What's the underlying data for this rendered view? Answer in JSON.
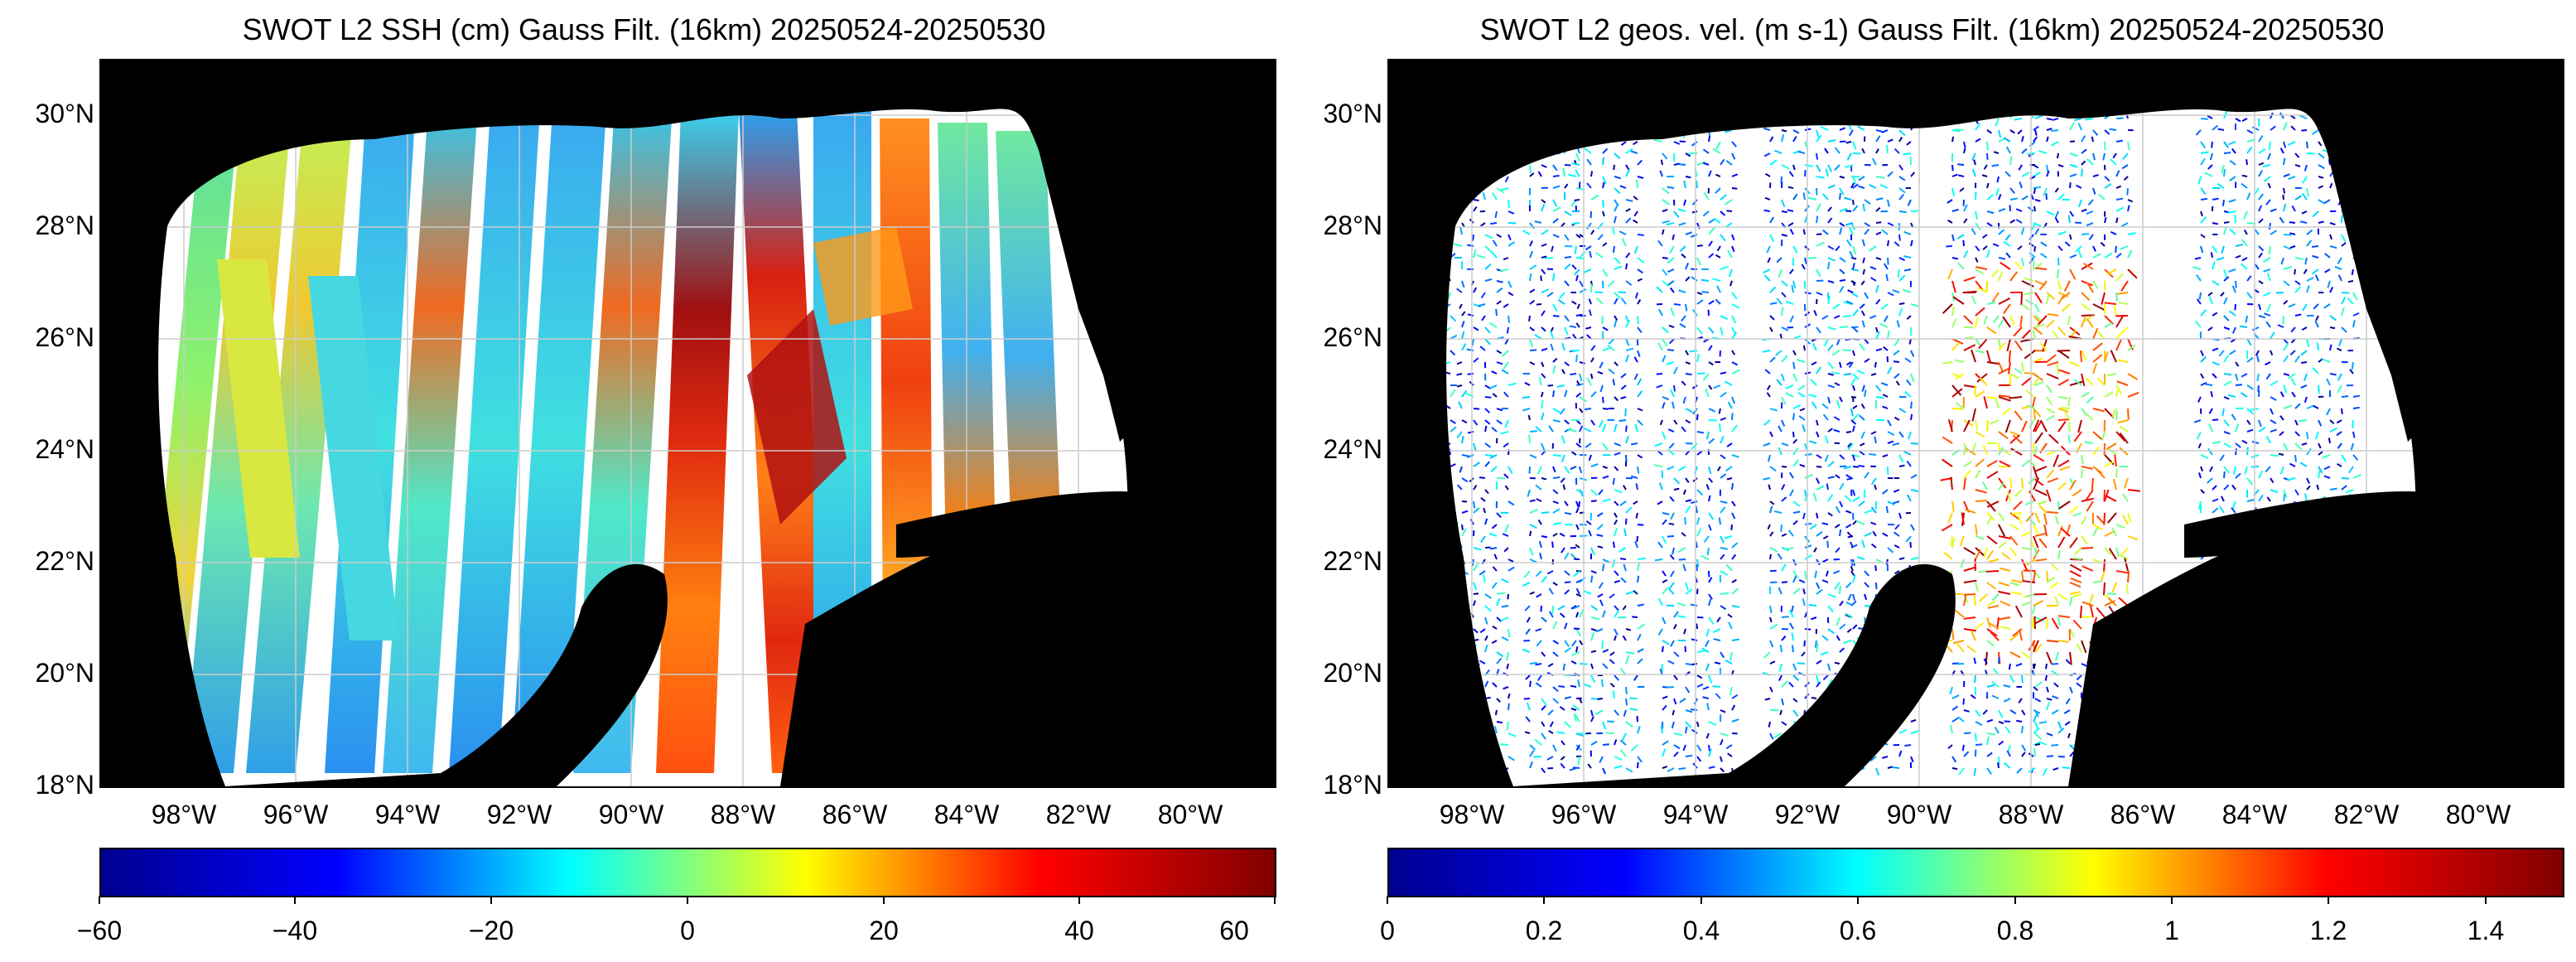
{
  "panels": [
    {
      "title": "SWOT L2 SSH (cm) Gauss Filt. (16km) 20250524-20250530",
      "lat_labels": [
        "30°N",
        "28°N",
        "26°N",
        "24°N",
        "22°N",
        "20°N",
        "18°N"
      ],
      "lon_labels": [
        "98°W",
        "96°W",
        "94°W",
        "92°W",
        "90°W",
        "88°W",
        "86°W",
        "84°W",
        "82°W",
        "80°W"
      ],
      "colorbar": {
        "ticks": [
          "−60",
          "−40",
          "−20",
          "0",
          "20",
          "40",
          "60"
        ],
        "min": -60,
        "max": 60
      }
    },
    {
      "title": "SWOT L2 geos. vel. (m s-1) Gauss Filt. (16km) 20250524-20250530",
      "lat_labels": [
        "30°N",
        "28°N",
        "26°N",
        "24°N",
        "22°N",
        "20°N",
        "18°N"
      ],
      "lon_labels": [
        "98°W",
        "96°W",
        "94°W",
        "92°W",
        "90°W",
        "88°W",
        "86°W",
        "84°W",
        "82°W",
        "80°W"
      ],
      "colorbar": {
        "ticks": [
          "0",
          "0.2",
          "0.4",
          "0.6",
          "0.8",
          "1",
          "1.2",
          "1.4"
        ],
        "min": 0,
        "max": 1.5
      }
    }
  ],
  "map_extent": {
    "lon": [
      -99.5,
      -78.5
    ],
    "lat": [
      18,
      31
    ]
  },
  "colormap": "jet",
  "colors": {
    "land": "#000000",
    "water": "#ffffff",
    "grid": "#cccccc"
  }
}
